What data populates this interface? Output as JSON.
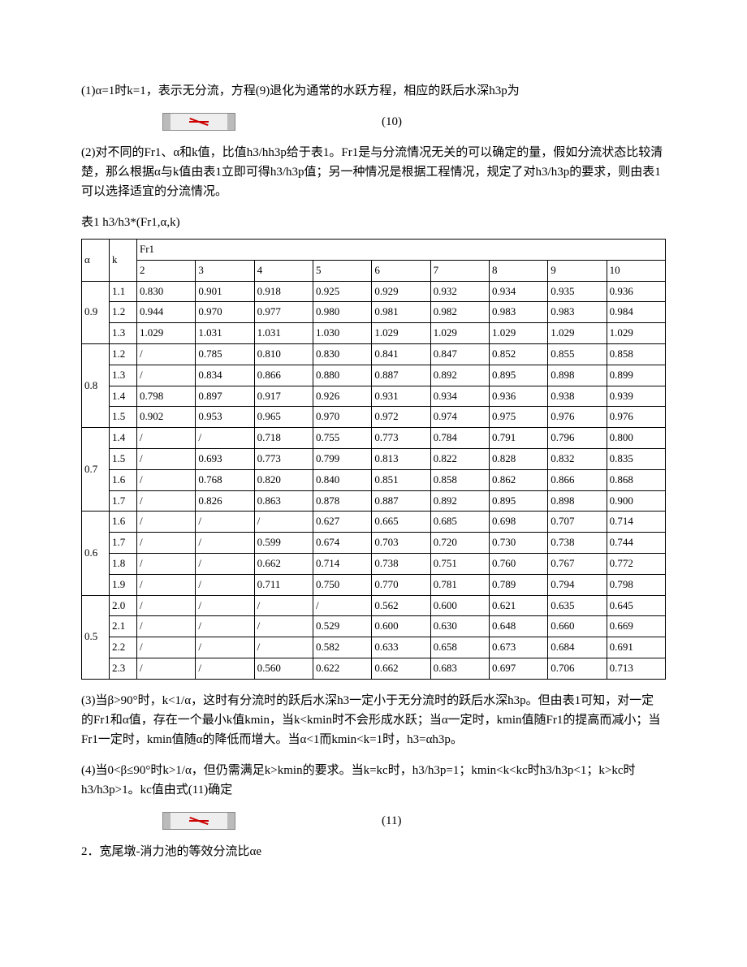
{
  "para1": "(1)α=1时k=1，表示无分流，方程(9)退化为通常的水跃方程，相应的跃后水深h3p为",
  "eq10_num": "(10)",
  "para2": "(2)对不同的Fr1、α和k值，比值h3/hh3p给于表1。Fr1是与分流情况无关的可以确定的量，假如分流状态比较清楚，那么根据α与k值由表1立即可得h3/h3p值；另一种情况是根据工程情况，规定了对h3/h3p的要求，则由表1可以选择适宜的分流情况。",
  "table_caption": "表1 h3/h3*(Fr1,α,k)",
  "headers": {
    "alpha": "α",
    "k": "k",
    "fr1": "Fr1",
    "fr1_cols": [
      "2",
      "3",
      "4",
      "5",
      "6",
      "7",
      "8",
      "9",
      "10"
    ]
  },
  "groups": [
    {
      "alpha": "0.9",
      "rows": [
        {
          "k": "1.1",
          "v": [
            "0.830",
            "0.901",
            "0.918",
            "0.925",
            "0.929",
            "0.932",
            "0.934",
            "0.935",
            "0.936"
          ]
        },
        {
          "k": "1.2",
          "v": [
            "0.944",
            "0.970",
            "0.977",
            "0.980",
            "0.981",
            "0.982",
            "0.983",
            "0.983",
            "0.984"
          ]
        },
        {
          "k": "1.3",
          "v": [
            "1.029",
            "1.031",
            "1.031",
            "1.030",
            "1.029",
            "1.029",
            "1.029",
            "1.029",
            "1.029"
          ]
        }
      ]
    },
    {
      "alpha": "0.8",
      "rows": [
        {
          "k": "1.2",
          "v": [
            "/",
            "0.785",
            "0.810",
            "0.830",
            "0.841",
            "0.847",
            "0.852",
            "0.855",
            "0.858"
          ]
        },
        {
          "k": "1.3",
          "v": [
            "/",
            "0.834",
            "0.866",
            "0.880",
            "0.887",
            "0.892",
            "0.895",
            "0.898",
            "0.899"
          ]
        },
        {
          "k": "1.4",
          "v": [
            "0.798",
            "0.897",
            "0.917",
            "0.926",
            "0.931",
            "0.934",
            "0.936",
            "0.938",
            "0.939"
          ]
        },
        {
          "k": "1.5",
          "v": [
            "0.902",
            "0.953",
            "0.965",
            "0.970",
            "0.972",
            "0.974",
            "0.975",
            "0.976",
            "0.976"
          ]
        }
      ]
    },
    {
      "alpha": "0.7",
      "rows": [
        {
          "k": "1.4",
          "v": [
            "/",
            "/",
            "0.718",
            "0.755",
            "0.773",
            "0.784",
            "0.791",
            "0.796",
            "0.800"
          ]
        },
        {
          "k": "1.5",
          "v": [
            "/",
            "0.693",
            "0.773",
            "0.799",
            "0.813",
            "0.822",
            "0.828",
            "0.832",
            "0.835"
          ]
        },
        {
          "k": "1.6",
          "v": [
            "/",
            "0.768",
            "0.820",
            "0.840",
            "0.851",
            "0.858",
            "0.862",
            "0.866",
            "0.868"
          ]
        },
        {
          "k": "1.7",
          "v": [
            "/",
            "0.826",
            "0.863",
            "0.878",
            "0.887",
            "0.892",
            "0.895",
            "0.898",
            "0.900"
          ]
        }
      ]
    },
    {
      "alpha": "0.6",
      "rows": [
        {
          "k": "1.6",
          "v": [
            "/",
            "/",
            "/",
            "0.627",
            "0.665",
            "0.685",
            "0.698",
            "0.707",
            "0.714"
          ]
        },
        {
          "k": "1.7",
          "v": [
            "/",
            "/",
            "0.599",
            "0.674",
            "0.703",
            "0.720",
            "0.730",
            "0.738",
            "0.744"
          ]
        },
        {
          "k": "1.8",
          "v": [
            "/",
            "/",
            "0.662",
            "0.714",
            "0.738",
            "0.751",
            "0.760",
            "0.767",
            "0.772"
          ]
        },
        {
          "k": "1.9",
          "v": [
            "/",
            "/",
            "0.711",
            "0.750",
            "0.770",
            "0.781",
            "0.789",
            "0.794",
            "0.798"
          ]
        }
      ]
    },
    {
      "alpha": "0.5",
      "rows": [
        {
          "k": "2.0",
          "v": [
            "/",
            "/",
            "/",
            "/",
            "0.562",
            "0.600",
            "0.621",
            "0.635",
            "0.645"
          ]
        },
        {
          "k": "2.1",
          "v": [
            "/",
            "/",
            "/",
            "0.529",
            "0.600",
            "0.630",
            "0.648",
            "0.660",
            "0.669"
          ]
        },
        {
          "k": "2.2",
          "v": [
            "/",
            "/",
            "/",
            "0.582",
            "0.633",
            "0.658",
            "0.673",
            "0.684",
            "0.691"
          ]
        },
        {
          "k": "2.3",
          "v": [
            "/",
            "/",
            "0.560",
            "0.622",
            "0.662",
            "0.683",
            "0.697",
            "0.706",
            "0.713"
          ]
        }
      ]
    }
  ],
  "para3": "(3)当β>90°时，k<1/α，这时有分流时的跃后水深h3一定小于无分流时的跃后水深h3p。但由表1可知，对一定的Fr1和α值，存在一个最小k值kmin，当k<kmin时不会形成水跃；当α一定时，kmin值随Fr1的提高而减小；当Fr1一定时，kmin值随α的降低而增大。当α<1而kmin<k=1时，h3=αh3p。",
  "para4": "(4)当0<β≤90°时k>1/α，但仍需满足k>kmin的要求。当k=kc时，h3/h3p=1；kmin<k<kc时h3/h3p<1；k>kc时h3/h3p>1。kc值由式(11)确定",
  "eq11_num": "(11)",
  "para5": "2．宽尾墩-消力池的等效分流比αe"
}
